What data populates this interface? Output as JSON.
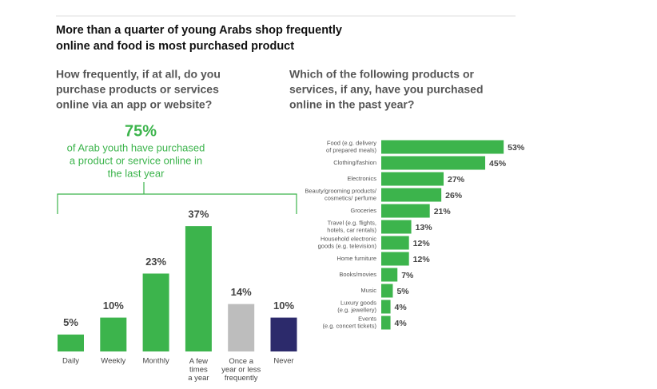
{
  "title": [
    "More than a quarter of young Arabs shop frequently",
    "online and food is most purchased product"
  ],
  "chart_data": [
    {
      "type": "bar",
      "title": [
        "How frequently, if at all, do you",
        "purchase products or services",
        "online via an app or website?"
      ],
      "callout": {
        "headline": "75%",
        "text": [
          "of Arab youth have purchased",
          "a product or service online in",
          "the last year"
        ]
      },
      "categories": [
        "Daily",
        "Weekly",
        "Monthly",
        "A few\ntimes\na year",
        "Once a\nyear or less\nfrequently",
        "Never"
      ],
      "values": [
        5,
        10,
        23,
        37,
        14,
        10
      ],
      "value_labels": [
        "5%",
        "10%",
        "23%",
        "37%",
        "14%",
        "10%"
      ],
      "colors": [
        "#3cb44c",
        "#3cb44c",
        "#3cb44c",
        "#3cb44c",
        "#bdbdbd",
        "#2c2a6b"
      ]
    },
    {
      "type": "hbar",
      "title": [
        "Which of the following products or",
        "services, if any, have you purchased",
        "online in the past year?"
      ],
      "categories": [
        "Food (e.g. delivery\nof prepared meals)",
        "Clothing/fashion",
        "Electronics",
        "Beauty/grooming products/\ncosmetics/ perfume",
        "Groceries",
        "Travel (e.g. flights,\nhotels, car rentals)",
        "Household electronic\ngoods (e.g. television)",
        "Home furniture",
        "Books/movies",
        "Music",
        "Luxury goods\n(e.g. jewellery)",
        "Events\n(e.g. concert tickets)"
      ],
      "values": [
        53,
        45,
        27,
        26,
        21,
        13,
        12,
        12,
        7,
        5,
        4,
        4
      ],
      "value_labels": [
        "53%",
        "45%",
        "27%",
        "26%",
        "21%",
        "13%",
        "12%",
        "12%",
        "7%",
        "5%",
        "4%",
        "4%"
      ],
      "color": "#3cb44c"
    }
  ]
}
